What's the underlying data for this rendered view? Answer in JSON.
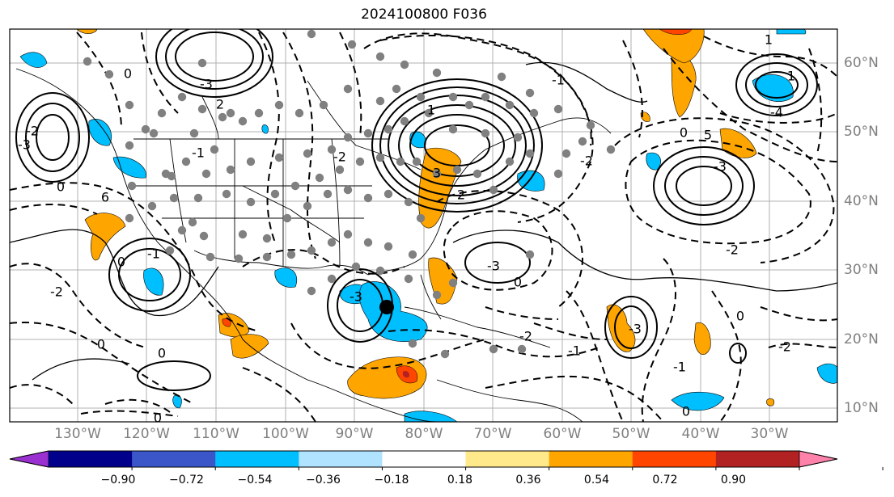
{
  "title": "2024100800 F036",
  "lon_labels": [
    "130°W",
    "120°W",
    "110°W",
    "100°W",
    "90°W",
    "80°W",
    "70°W",
    "60°W",
    "50°W",
    "40°W",
    "30°W"
  ],
  "lat_labels": [
    "60°N",
    "50°N",
    "40°N",
    "30°N",
    "20°N",
    "10°N"
  ],
  "colorbar": {
    "ticks": [
      "−0.90",
      "−0.72",
      "−0.54",
      "−0.36",
      "−0.18",
      "0.18",
      "0.36",
      "0.54",
      "0.72",
      "0.90"
    ],
    "colors": [
      "#9b30d0",
      "#00008b",
      "#3a56c8",
      "#00bfff",
      "#afe3ff",
      "#ffffff",
      "#ffe98a",
      "#ffa500",
      "#ff4500",
      "#b22222",
      "#ff82ab"
    ]
  },
  "contour_labels": [
    "0",
    "-1",
    "-2",
    "-3",
    "1",
    "2",
    "3",
    "4",
    "5",
    "6",
    "-4"
  ],
  "colors": {
    "shade_orange": "#ffa500",
    "shade_blue": "#00bfff",
    "shade_red": "#ff4500",
    "station": "#808080",
    "center_marker": "#000000"
  }
}
